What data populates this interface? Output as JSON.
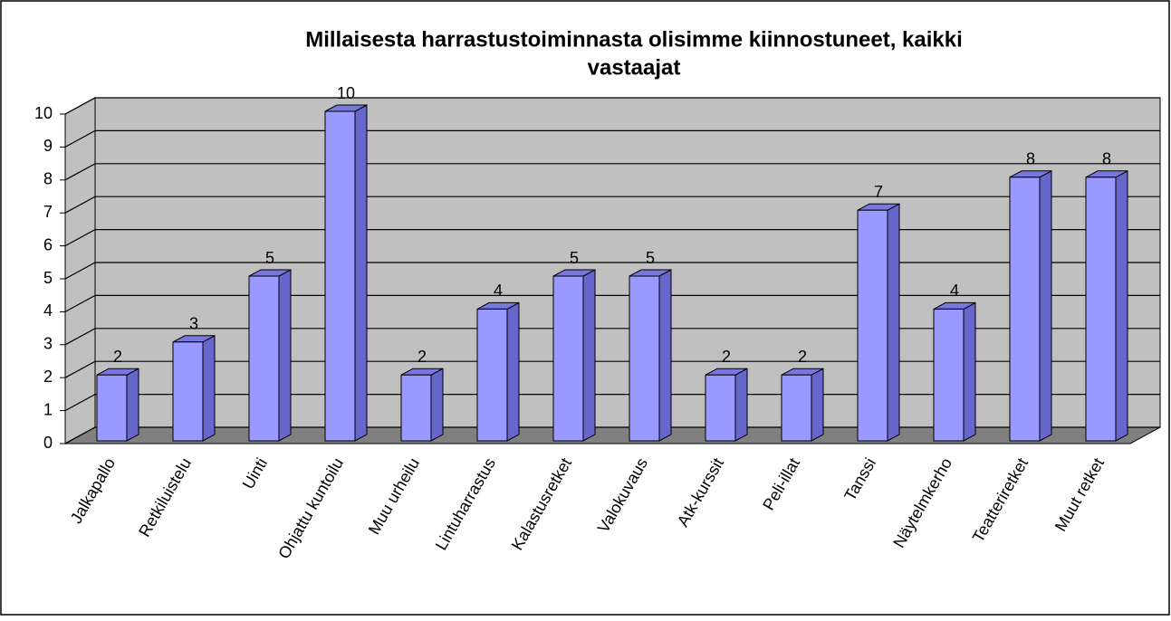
{
  "chart_data": {
    "type": "bar3d",
    "title": [
      "Millaisesta harrastustoiminnasta olisimme kiinnostuneet, kaikki",
      "vastaajat"
    ],
    "categories": [
      "Jalkapallo",
      "Retkiluistelu",
      "Uinti",
      "Ohjattu kuntoilu",
      "Muu urheilu",
      "Lintuharrastus",
      "Kalastusretket",
      "Valokuvaus",
      "Atk-kurssit",
      "Peli-illat",
      "Tanssi",
      "Näytelmkerho",
      "Teatteriretket",
      "Muut retket"
    ],
    "values": [
      2,
      3,
      5,
      10,
      2,
      4,
      5,
      5,
      2,
      2,
      7,
      4,
      8,
      8
    ],
    "color": "#9999ff",
    "ylim": [
      0,
      10
    ],
    "yticks": [
      0,
      1,
      2,
      3,
      4,
      5,
      6,
      7,
      8,
      9,
      10
    ],
    "grid": true
  }
}
